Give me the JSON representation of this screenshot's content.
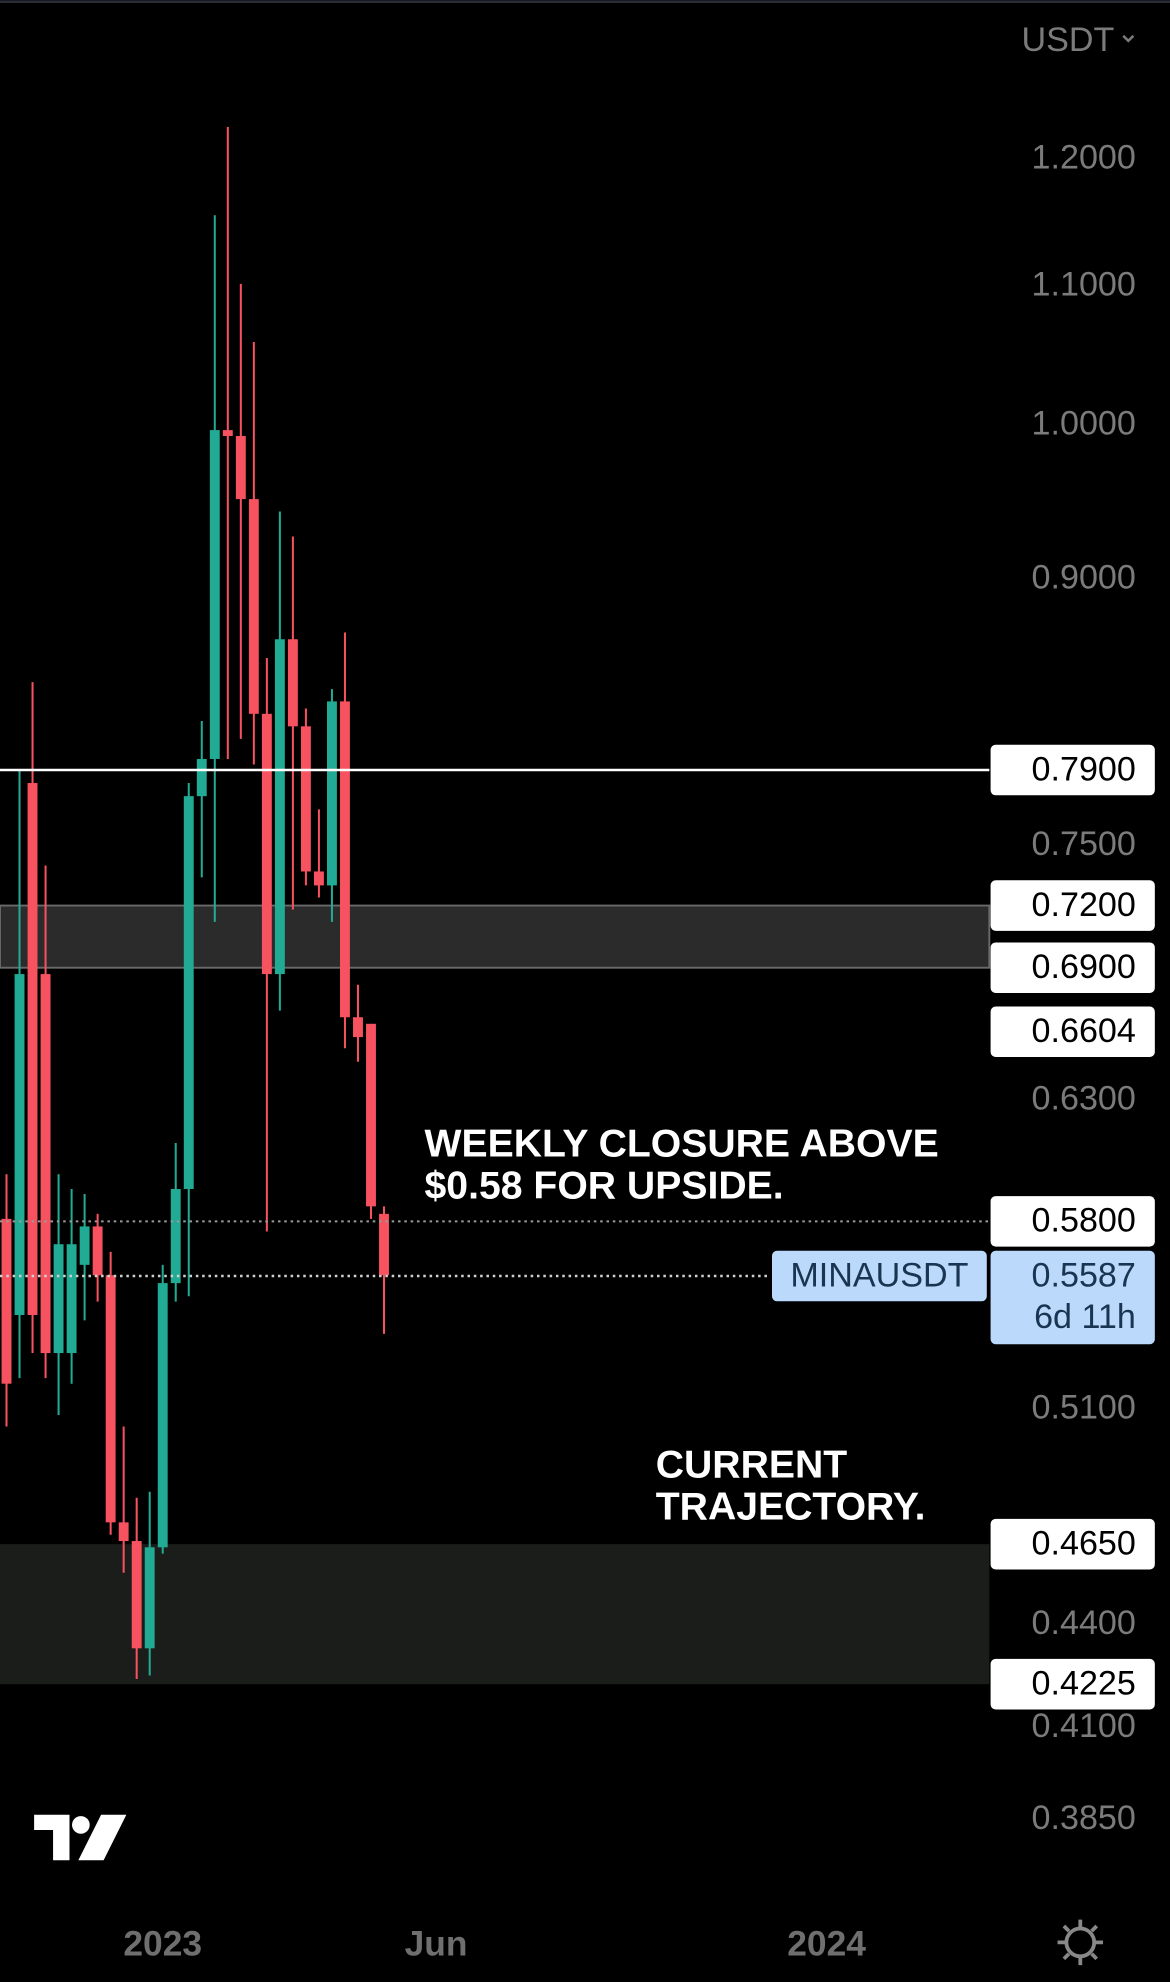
{
  "chart_data": {
    "type": "candlestick",
    "currency": "USDT",
    "symbol": "MINAUSDT",
    "countdown": "6d 11h",
    "log_scale": true,
    "up_color": "#22ab94",
    "down_color": "#f7525f",
    "xlim": [
      -0.5,
      75.5
    ],
    "xticks": [
      {
        "value": 12,
        "label": "2023"
      },
      {
        "value": 33,
        "label": "Jun"
      },
      {
        "value": 63,
        "label": "2024"
      }
    ],
    "ylim": [
      0.3624,
      1.338
    ],
    "yticks": [
      {
        "value": 1.2,
        "label": "1.2000"
      },
      {
        "value": 1.1,
        "label": "1.1000"
      },
      {
        "value": 1.0,
        "label": "1.0000"
      },
      {
        "value": 0.9,
        "label": "0.9000"
      },
      {
        "value": 0.75,
        "label": "0.7500"
      },
      {
        "value": 0.63,
        "label": "0.6300"
      },
      {
        "value": 0.51,
        "label": "0.5100"
      },
      {
        "value": 0.44,
        "label": "0.4400"
      },
      {
        "value": 0.41,
        "label": "0.4100"
      },
      {
        "value": 0.385,
        "label": "0.3850"
      }
    ],
    "open": [
      0.581,
      0.544,
      0.783,
      0.687,
      0.53,
      0.53,
      0.563,
      0.578,
      0.559,
      0.472,
      0.466,
      0.433,
      0.464,
      0.556,
      0.593,
      0.776,
      0.796,
      0.997,
      0.993,
      0.951,
      0.821,
      0.687,
      0.864,
      0.814,
      0.737,
      0.73,
      0.828,
      0.667,
      0.664,
      0.583
    ],
    "high": [
      0.599,
      0.79,
      0.839,
      0.74,
      0.599,
      0.593,
      0.591,
      0.583,
      0.568,
      0.504,
      0.48,
      0.482,
      0.563,
      0.612,
      0.783,
      0.817,
      1.155,
      1.227,
      1.102,
      1.059,
      0.853,
      0.943,
      0.927,
      0.824,
      0.769,
      0.835,
      0.868,
      0.682,
      0.664,
      0.586
    ],
    "low": [
      0.504,
      0.521,
      0.53,
      0.521,
      0.508,
      0.519,
      0.542,
      0.549,
      0.468,
      0.456,
      0.424,
      0.425,
      0.462,
      0.549,
      0.551,
      0.734,
      0.712,
      0.796,
      0.807,
      0.793,
      0.576,
      0.67,
      0.718,
      0.73,
      0.724,
      0.712,
      0.653,
      0.647,
      0.581,
      0.537
    ],
    "close": [
      0.519,
      0.687,
      0.544,
      0.53,
      0.571,
      0.571,
      0.578,
      0.559,
      0.472,
      0.466,
      0.433,
      0.464,
      0.556,
      0.593,
      0.776,
      0.796,
      0.997,
      0.993,
      0.951,
      0.821,
      0.687,
      0.864,
      0.814,
      0.737,
      0.73,
      0.828,
      0.667,
      0.658,
      0.586,
      0.559
    ],
    "levels": [
      {
        "value": 0.79,
        "label": "0.7900",
        "style": "solid"
      },
      {
        "value": 0.72,
        "label": "0.7200",
        "style": "zone-top"
      },
      {
        "value": 0.69,
        "label": "0.6900",
        "style": "zone-bottom"
      },
      {
        "value": 0.6604,
        "label": "0.6604",
        "style": "none"
      },
      {
        "value": 0.58,
        "label": "0.5800",
        "style": "dotted"
      },
      {
        "value": 0.465,
        "label": "0.4650",
        "style": "zone-top"
      },
      {
        "value": 0.4225,
        "label": "0.4225",
        "style": "zone-bottom"
      }
    ],
    "last": {
      "value": 0.5587,
      "label": "0.5587"
    },
    "annotations": [
      {
        "lines": [
          "WEEKLY CLOSURE ABOVE",
          "$0.58 FOR UPSIDE."
        ]
      },
      {
        "lines": [
          "CURRENT",
          "TRAJECTORY."
        ]
      }
    ]
  }
}
